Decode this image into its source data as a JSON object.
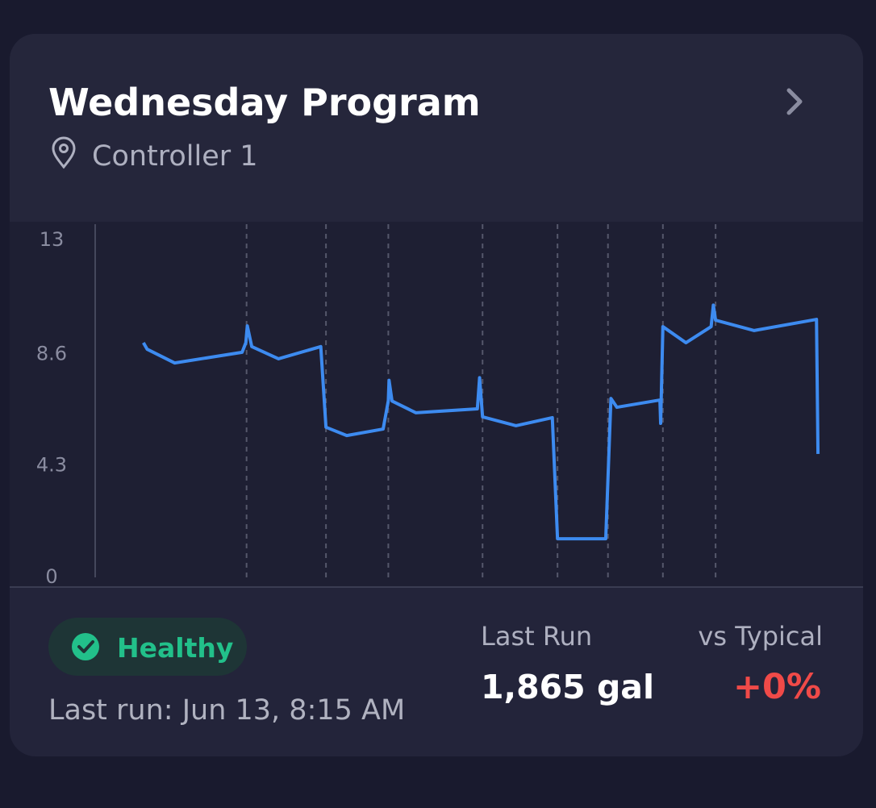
{
  "header": {
    "title": "Wednesday Program",
    "subtitle": "Controller 1"
  },
  "chart_data": {
    "type": "line",
    "xlim": [
      0,
      100
    ],
    "ylim": [
      0,
      13
    ],
    "yticks": [
      0,
      4.3,
      8.6,
      13
    ],
    "zone_boundaries": [
      20.4,
      31.1,
      39.5,
      52.2,
      62.3,
      69.1,
      76.5,
      83.6
    ],
    "series": [
      {
        "color": "#3d8bf0",
        "x": [
          6.5,
          7.0,
          10.7,
          19.8,
          20.3,
          20.5,
          21.1,
          24.7,
          30.4,
          31.1,
          33.9,
          38.8,
          39.5,
          39.6,
          40.0,
          43.2,
          51.5,
          51.8,
          52.2,
          56.7,
          61.6,
          62.3,
          68.8,
          69.5,
          70.3,
          76.1,
          76.2,
          76.5,
          79.6,
          83.0,
          83.3,
          83.6,
          88.8,
          97.2,
          97.4
        ],
        "values": [
          9.05,
          8.8,
          8.27,
          8.68,
          9.05,
          9.7,
          8.9,
          8.43,
          8.9,
          5.79,
          5.47,
          5.72,
          6.81,
          7.6,
          6.8,
          6.35,
          6.5,
          7.7,
          6.19,
          5.85,
          6.16,
          1.49,
          1.49,
          6.9,
          6.56,
          6.84,
          5.94,
          9.67,
          9.05,
          9.67,
          10.5,
          9.92,
          9.52,
          9.95,
          4.76
        ]
      }
    ]
  },
  "footer": {
    "status": "Healthy",
    "last_run": "Last run: Jun 13, 8:15 AM",
    "stats": [
      {
        "label": "Last Run",
        "value": "1,865 gal"
      },
      {
        "label": "vs Typical",
        "value": "+0%"
      }
    ]
  }
}
